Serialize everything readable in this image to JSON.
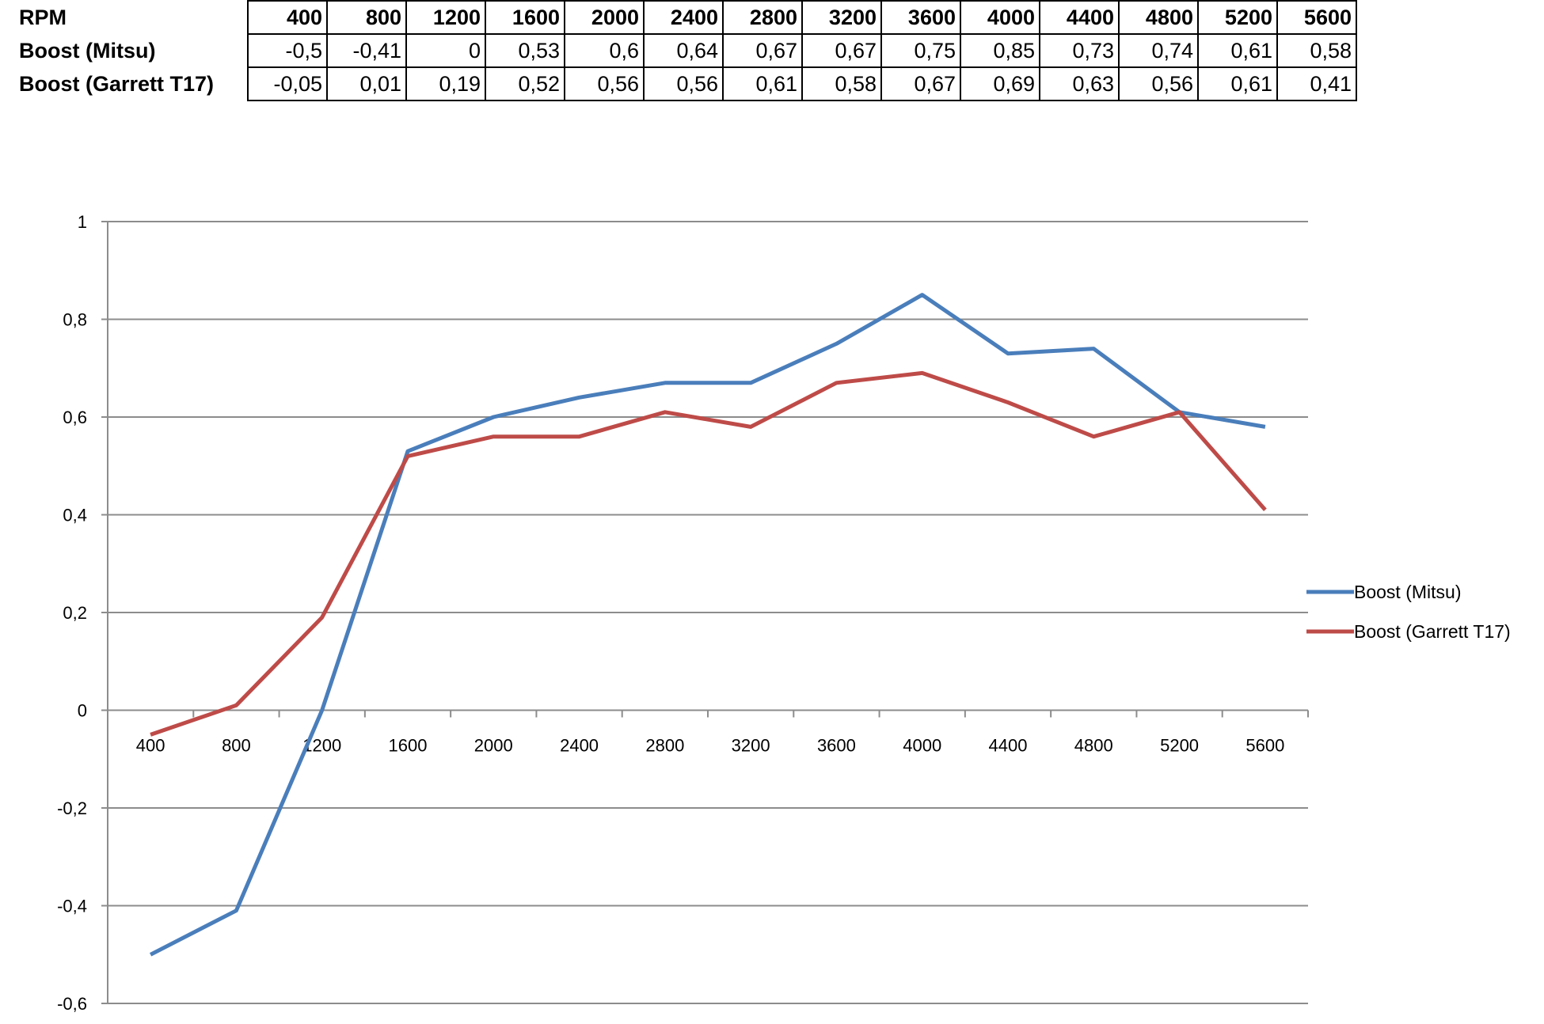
{
  "table": {
    "row_labels": [
      "RPM",
      "Boost (Mitsu)",
      "Boost (Garrett T17)"
    ],
    "rpm": [
      "400",
      "800",
      "1200",
      "1600",
      "2000",
      "2400",
      "2800",
      "3200",
      "3600",
      "4000",
      "4400",
      "4800",
      "5200",
      "5600"
    ],
    "mitsu": [
      "-0,5",
      "-0,41",
      "0",
      "0,53",
      "0,6",
      "0,64",
      "0,67",
      "0,67",
      "0,75",
      "0,85",
      "0,73",
      "0,74",
      "0,61",
      "0,58"
    ],
    "garrett": [
      "-0,05",
      "0,01",
      "0,19",
      "0,52",
      "0,56",
      "0,56",
      "0,61",
      "0,58",
      "0,67",
      "0,69",
      "0,63",
      "0,56",
      "0,61",
      "0,41"
    ]
  },
  "chart_data": {
    "type": "line",
    "title": "",
    "xlabel": "",
    "ylabel": "",
    "categories": [
      "400",
      "800",
      "1200",
      "1600",
      "2000",
      "2400",
      "2800",
      "3200",
      "3600",
      "4000",
      "4400",
      "4800",
      "5200",
      "5600"
    ],
    "series": [
      {
        "name": "Boost (Mitsu)",
        "color": "#4a7ebb",
        "values": [
          -0.5,
          -0.41,
          0,
          0.53,
          0.6,
          0.64,
          0.67,
          0.67,
          0.75,
          0.85,
          0.73,
          0.74,
          0.61,
          0.58
        ]
      },
      {
        "name": "Boost (Garrett T17)",
        "color": "#be4b48",
        "values": [
          -0.05,
          0.01,
          0.19,
          0.52,
          0.56,
          0.56,
          0.61,
          0.58,
          0.67,
          0.69,
          0.63,
          0.56,
          0.61,
          0.41
        ]
      }
    ],
    "ylim": [
      -0.6,
      1
    ],
    "yticks": [
      "-0,6",
      "-0,4",
      "-0,2",
      "0",
      "0,2",
      "0,4",
      "0,6",
      "0,8",
      "1"
    ],
    "ytick_values": [
      -0.6,
      -0.4,
      -0.2,
      0,
      0.2,
      0.4,
      0.6,
      0.8,
      1
    ],
    "grid": true,
    "legend_position": "right"
  }
}
